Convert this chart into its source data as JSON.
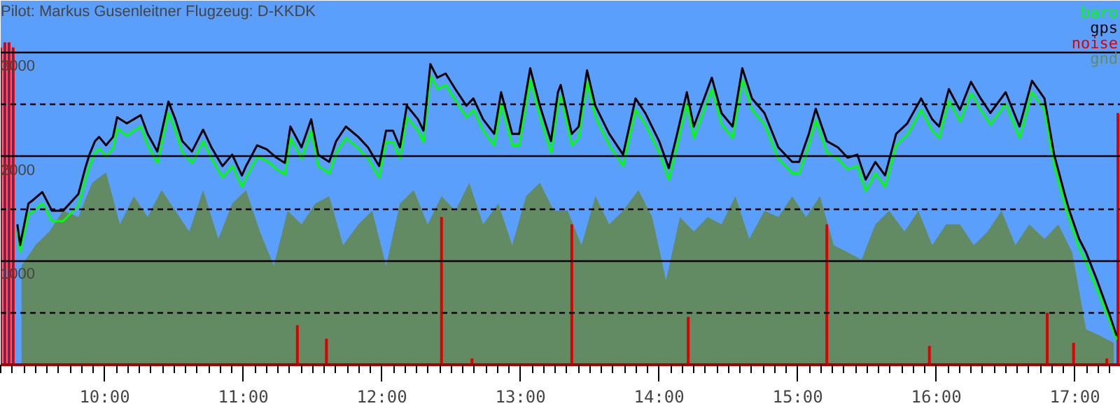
{
  "chart_data": {
    "type": "line",
    "title": "Pilot: Markus Gusenleitner Flugzeug: D-KKDK",
    "xlim": [
      9.25,
      17.33
    ],
    "ylim": [
      0,
      3500
    ],
    "xticks": [
      {
        "value": 10,
        "label": "10:00"
      },
      {
        "value": 11,
        "label": "11:00"
      },
      {
        "value": 12,
        "label": "12:00"
      },
      {
        "value": 13,
        "label": "13:00"
      },
      {
        "value": 14,
        "label": "14:00"
      },
      {
        "value": 15,
        "label": "15:00"
      },
      {
        "value": 16,
        "label": "16:00"
      },
      {
        "value": 17,
        "label": "17:00"
      }
    ],
    "yticks": [
      {
        "value": 500,
        "label": null
      },
      1000,
      {
        "value": 1500,
        "label": null
      },
      2000,
      {
        "value": 2500,
        "label": null
      },
      3000
    ],
    "grid": "y",
    "legend": "top right",
    "series": [
      {
        "name": "baro",
        "color": "#00ff00",
        "x": [
          9.37,
          9.39,
          9.45,
          9.48,
          9.55,
          9.62,
          9.7,
          9.81,
          9.86,
          9.89,
          9.93,
          9.96,
          10.01,
          10.06,
          10.09,
          10.16,
          10.21,
          10.26,
          10.31,
          10.38,
          10.46,
          10.51,
          10.56,
          10.63,
          10.71,
          10.77,
          10.85,
          10.92,
          10.99,
          11.02,
          11.1,
          11.17,
          11.24,
          11.3,
          11.34,
          11.42,
          11.49,
          11.54,
          11.62,
          11.67,
          11.74,
          11.83,
          11.9,
          11.98,
          12.03,
          12.08,
          12.13,
          12.18,
          12.26,
          12.3,
          12.35,
          12.4,
          12.46,
          12.53,
          12.61,
          12.66,
          12.73,
          12.81,
          12.86,
          12.94,
          12.99,
          13.07,
          13.14,
          13.22,
          13.27,
          13.29,
          13.37,
          13.42,
          13.48,
          13.54,
          13.64,
          13.74,
          13.83,
          13.9,
          14.0,
          14.07,
          14.13,
          14.2,
          14.25,
          14.38,
          14.45,
          14.53,
          14.6,
          14.67,
          14.76,
          14.86,
          14.96,
          15.01,
          15.08,
          15.13,
          15.21,
          15.29,
          15.36,
          15.43,
          15.49,
          15.56,
          15.63,
          15.71,
          15.79,
          15.89,
          15.97,
          16.02,
          16.09,
          16.17,
          16.25,
          16.32,
          16.39,
          16.5,
          16.6,
          16.69,
          16.78,
          16.85,
          16.93,
          16.96,
          17.03,
          17.08,
          17.16,
          17.25,
          17.3
        ],
        "values": [
          1300,
          1080,
          1450,
          1470,
          1550,
          1380,
          1380,
          1530,
          1780,
          1910,
          2040,
          2080,
          2000,
          2080,
          2270,
          2200,
          2250,
          2290,
          2110,
          1940,
          2420,
          2250,
          2040,
          1940,
          2150,
          1980,
          1800,
          1910,
          1710,
          1800,
          2000,
          1960,
          1880,
          1830,
          2180,
          1980,
          2250,
          1910,
          1840,
          2040,
          2180,
          2080,
          1980,
          1800,
          2140,
          2140,
          1980,
          2380,
          2250,
          2140,
          2780,
          2650,
          2690,
          2540,
          2380,
          2450,
          2250,
          2110,
          2510,
          2110,
          2110,
          2740,
          2380,
          2040,
          2510,
          2580,
          2110,
          2180,
          2720,
          2380,
          2110,
          1910,
          2450,
          2310,
          2040,
          1780,
          2110,
          2510,
          2180,
          2650,
          2310,
          2180,
          2740,
          2450,
          2310,
          1980,
          1840,
          1840,
          2110,
          2350,
          2040,
          1980,
          1880,
          1910,
          1670,
          1840,
          1710,
          2110,
          2210,
          2450,
          2250,
          2180,
          2540,
          2340,
          2610,
          2450,
          2310,
          2510,
          2180,
          2620,
          2450,
          1910,
          1520,
          1390,
          1120,
          980,
          720,
          420,
          240
        ]
      },
      {
        "name": "gps",
        "color": "#000000",
        "x": [
          9.37,
          9.39,
          9.45,
          9.48,
          9.55,
          9.62,
          9.7,
          9.81,
          9.86,
          9.89,
          9.93,
          9.96,
          10.01,
          10.06,
          10.09,
          10.16,
          10.21,
          10.26,
          10.31,
          10.38,
          10.46,
          10.51,
          10.56,
          10.63,
          10.71,
          10.77,
          10.85,
          10.92,
          10.99,
          11.02,
          11.1,
          11.17,
          11.24,
          11.3,
          11.34,
          11.42,
          11.49,
          11.54,
          11.62,
          11.67,
          11.74,
          11.83,
          11.9,
          11.98,
          12.03,
          12.08,
          12.13,
          12.18,
          12.26,
          12.3,
          12.35,
          12.4,
          12.46,
          12.53,
          12.61,
          12.66,
          12.73,
          12.81,
          12.86,
          12.94,
          12.99,
          13.07,
          13.14,
          13.22,
          13.27,
          13.29,
          13.37,
          13.42,
          13.48,
          13.54,
          13.64,
          13.74,
          13.83,
          13.9,
          14.0,
          14.07,
          14.13,
          14.2,
          14.25,
          14.38,
          14.45,
          14.53,
          14.6,
          14.67,
          14.76,
          14.86,
          14.96,
          15.01,
          15.08,
          15.13,
          15.21,
          15.29,
          15.36,
          15.43,
          15.49,
          15.56,
          15.63,
          15.71,
          15.79,
          15.89,
          15.97,
          16.02,
          16.09,
          16.17,
          16.25,
          16.32,
          16.39,
          16.5,
          16.6,
          16.69,
          16.78,
          16.85,
          16.93,
          16.96,
          17.03,
          17.08,
          17.16,
          17.25,
          17.3
        ],
        "values": [
          1350,
          1150,
          1550,
          1580,
          1660,
          1480,
          1480,
          1640,
          1890,
          2020,
          2150,
          2190,
          2110,
          2190,
          2380,
          2320,
          2360,
          2400,
          2220,
          2050,
          2530,
          2360,
          2150,
          2050,
          2260,
          2090,
          1910,
          2020,
          1820,
          1910,
          2110,
          2070,
          1990,
          1940,
          2290,
          2090,
          2360,
          2020,
          1950,
          2150,
          2290,
          2190,
          2090,
          1910,
          2250,
          2250,
          2090,
          2490,
          2360,
          2250,
          2890,
          2760,
          2800,
          2650,
          2490,
          2560,
          2360,
          2220,
          2620,
          2220,
          2220,
          2850,
          2490,
          2150,
          2620,
          2690,
          2220,
          2290,
          2830,
          2490,
          2220,
          2020,
          2560,
          2420,
          2150,
          1890,
          2220,
          2620,
          2290,
          2760,
          2420,
          2290,
          2850,
          2560,
          2420,
          2090,
          1950,
          1950,
          2220,
          2460,
          2150,
          2090,
          1990,
          2020,
          1780,
          1950,
          1820,
          2220,
          2320,
          2560,
          2360,
          2290,
          2650,
          2450,
          2720,
          2560,
          2420,
          2620,
          2290,
          2730,
          2560,
          2020,
          1620,
          1480,
          1210,
          1080,
          810,
          480,
          280
        ]
      },
      {
        "name": "noise",
        "type": "bar",
        "color": "#dd0000",
        "x": [
          9.25,
          9.28,
          9.31,
          9.34,
          11.39,
          11.6,
          12.43,
          12.65,
          13.37,
          14.21,
          15.21,
          15.95,
          16.8,
          16.99,
          17.23,
          17.31
        ],
        "values": [
          3050,
          3100,
          3100,
          3050,
          380,
          250,
          1420,
          60,
          1350,
          460,
          1350,
          180,
          500,
          210,
          60,
          2420
        ]
      },
      {
        "name": "gnd",
        "type": "area",
        "color": "#638b63",
        "x": [
          9.4,
          9.5,
          9.6,
          9.7,
          9.81,
          9.91,
          10.01,
          10.11,
          10.21,
          10.31,
          10.41,
          10.51,
          10.61,
          10.71,
          10.82,
          10.92,
          11.02,
          11.12,
          11.22,
          11.32,
          11.42,
          11.52,
          11.62,
          11.72,
          11.83,
          11.93,
          12.03,
          12.13,
          12.23,
          12.33,
          12.43,
          12.53,
          12.63,
          12.73,
          12.84,
          12.94,
          13.04,
          13.14,
          13.24,
          13.34,
          13.44,
          13.54,
          13.64,
          13.74,
          13.85,
          13.95,
          14.05,
          14.15,
          14.25,
          14.35,
          14.45,
          14.55,
          14.65,
          14.76,
          14.86,
          14.96,
          15.06,
          15.16,
          15.26,
          15.36,
          15.46,
          15.56,
          15.66,
          15.77,
          15.87,
          15.97,
          16.07,
          16.17,
          16.27,
          16.37,
          16.47,
          16.57,
          16.67,
          16.78,
          16.88,
          16.98,
          17.08,
          17.18,
          17.28
        ],
        "values": [
          950,
          1150,
          1280,
          1480,
          1420,
          1750,
          1850,
          1350,
          1620,
          1420,
          1680,
          1480,
          1280,
          1680,
          1210,
          1550,
          1680,
          1280,
          950,
          1480,
          1350,
          1550,
          1620,
          1150,
          1350,
          1480,
          950,
          1550,
          1680,
          1350,
          1620,
          1480,
          1750,
          1350,
          1550,
          1150,
          1620,
          1750,
          1480,
          1480,
          1150,
          1620,
          1350,
          1480,
          1680,
          1420,
          810,
          1420,
          1280,
          1420,
          1350,
          1620,
          1210,
          1480,
          1420,
          1620,
          1420,
          1620,
          1150,
          1080,
          1010,
          1350,
          1480,
          1280,
          1480,
          1150,
          1350,
          1350,
          1150,
          1280,
          1480,
          1150,
          1350,
          1210,
          1350,
          1080,
          340,
          280,
          210
        ]
      }
    ]
  }
}
